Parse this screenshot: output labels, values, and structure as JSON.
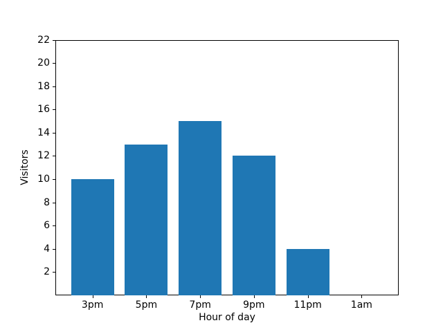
{
  "chart_data": {
    "type": "bar",
    "xlabel": "Hour of day",
    "ylabel": "Visitors",
    "categories": [
      "3pm",
      "5pm",
      "7pm",
      "9pm",
      "11pm",
      "1am"
    ],
    "values": [
      10,
      13,
      15,
      12,
      4,
      0
    ],
    "ylim": [
      0,
      22
    ],
    "yticks": [
      2,
      4,
      6,
      8,
      10,
      12,
      14,
      16,
      18,
      20,
      22
    ],
    "bar_color": "#1f77b4",
    "axis_color": "#000000",
    "background_color": "#ffffff",
    "grid": false,
    "legend_position": "none"
  }
}
